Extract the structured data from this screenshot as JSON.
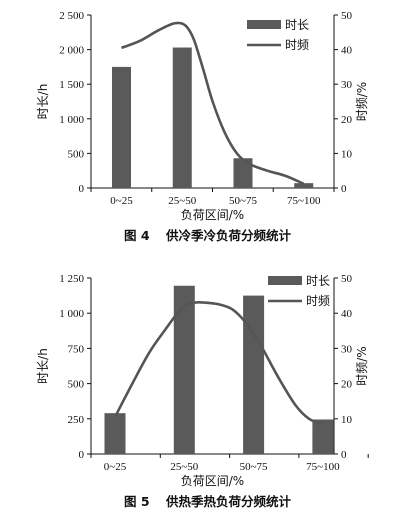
{
  "chart_data": [
    {
      "type": "bar+line",
      "caption_num": "图 4",
      "caption_text": "供冷季冷负荷分频统计",
      "categories": [
        "0~25",
        "25~50",
        "50~75",
        "75~100"
      ],
      "xlabel": "负荷区间/%",
      "ylabel_left": "时长/h",
      "ylabel_right": "时频/%",
      "ylim_left": [
        0,
        2500
      ],
      "ylim_right": [
        0,
        50
      ],
      "yticks_left": [
        "0",
        "500",
        "1 000",
        "1 500",
        "2 000",
        "2 500"
      ],
      "yticks_right": [
        "0",
        "10",
        "20",
        "30",
        "40",
        "50"
      ],
      "series": [
        {
          "name": "时长",
          "kind": "bar",
          "axis": "left",
          "values": [
            1750,
            2030,
            430,
            70
          ]
        },
        {
          "name": "时频",
          "kind": "line",
          "axis": "right",
          "x": [
            0.0,
            0.3,
            0.6,
            0.85,
            1.0,
            1.1,
            1.2,
            1.35,
            1.5,
            1.7,
            1.9,
            2.1,
            2.4,
            2.7,
            3.0
          ],
          "values": [
            40.5,
            42.5,
            45.5,
            47.5,
            47.5,
            46,
            42.5,
            34,
            25,
            16,
            10,
            7,
            5,
            3.5,
            1.2
          ]
        }
      ],
      "legend_position": "top-right"
    },
    {
      "type": "bar+line",
      "caption_num": "图 5",
      "caption_text": "供热季热负荷分频统计",
      "categories": [
        "0~25",
        "25~50",
        "50~75",
        "75~100"
      ],
      "xlabel": "负荷区间/%",
      "ylabel_left": "时长/h",
      "ylabel_right": "时频/%",
      "ylim_left": [
        0,
        1250
      ],
      "ylim_right": [
        0,
        50
      ],
      "yticks_left": [
        "0",
        "250",
        "500",
        "750",
        "1 000",
        "1 250"
      ],
      "yticks_right": [
        "0",
        "10",
        "20",
        "30",
        "40",
        "50"
      ],
      "series": [
        {
          "name": "时长",
          "kind": "bar",
          "axis": "left",
          "values": [
            290,
            1195,
            1125,
            245
          ]
        },
        {
          "name": "时频",
          "kind": "line",
          "axis": "right",
          "x": [
            0.0,
            0.25,
            0.5,
            0.75,
            0.9,
            1.0,
            1.15,
            1.3,
            1.5,
            1.7,
            1.9,
            2.1,
            2.35,
            2.6,
            2.8,
            3.0
          ],
          "values": [
            10.5,
            20,
            29,
            36,
            40,
            42,
            43,
            43,
            42.5,
            41,
            37,
            31,
            22,
            14,
            10,
            8.5
          ]
        }
      ],
      "legend_position": "top-right"
    }
  ]
}
